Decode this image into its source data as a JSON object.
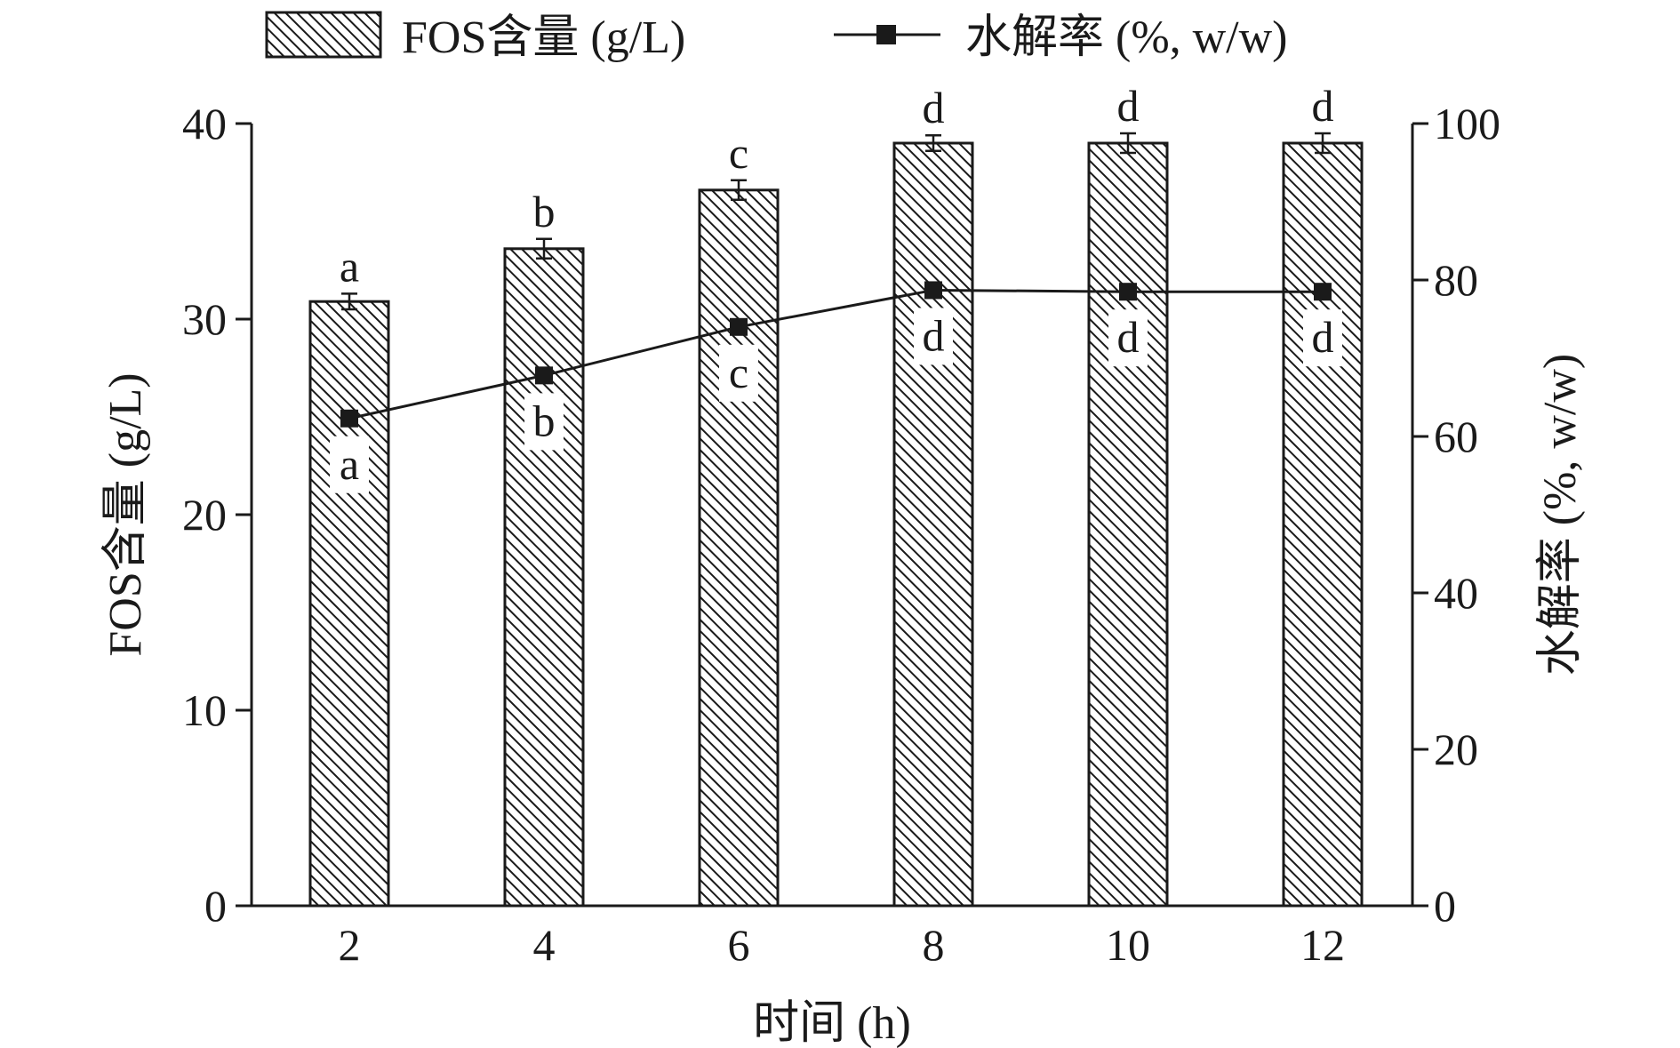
{
  "chart_data": {
    "type": "bar",
    "categories": [
      "2",
      "4",
      "6",
      "8",
      "10",
      "12"
    ],
    "xlabel": "时间 (h)",
    "ylabel": "FOS含量 (g/L)",
    "y2label": "水解率 (%, w/w)",
    "ylim": [
      0,
      40
    ],
    "y2lim": [
      0,
      100
    ],
    "yticks": [
      "0",
      "10",
      "20",
      "30",
      "40"
    ],
    "y2ticks": [
      "0",
      "20",
      "40",
      "60",
      "80",
      "100"
    ],
    "legend_position": "top",
    "grid": false,
    "series": [
      {
        "name": "FOS含量 (g/L)",
        "kind": "bar",
        "axis": "left",
        "pattern": "diagonal-hatch",
        "values": [
          30.9,
          33.6,
          36.6,
          39.0,
          39.0,
          39.0
        ],
        "errors": [
          0.4,
          0.5,
          0.5,
          0.4,
          0.5,
          0.5
        ],
        "letters": [
          "a",
          "b",
          "c",
          "d",
          "d",
          "d"
        ]
      },
      {
        "name": "水解率 (%, w/w)",
        "kind": "line",
        "axis": "right",
        "marker": "square",
        "values": [
          62.3,
          67.8,
          74.0,
          78.7,
          78.5,
          78.5
        ],
        "letters": [
          "a",
          "b",
          "c",
          "d",
          "d",
          "d"
        ]
      }
    ],
    "colors": {
      "bar_fill": "#ffffff",
      "hatch": "#1a1a1a",
      "line": "#1a1a1a",
      "marker": "#1a1a1a"
    }
  }
}
